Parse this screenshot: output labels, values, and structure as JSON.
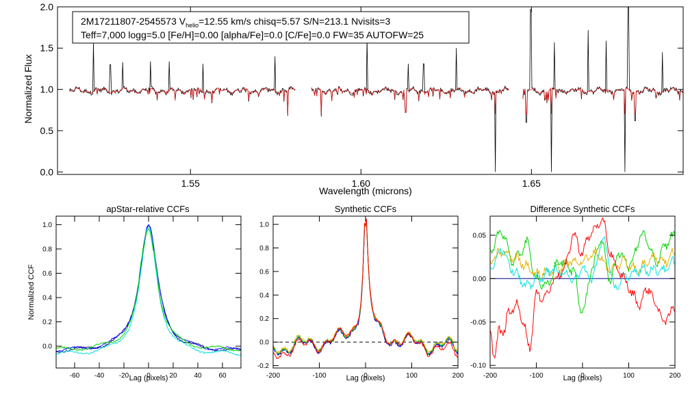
{
  "top_panel": {
    "info_line1": {
      "star": "2M17211807-2545573",
      "v_prefix": "V",
      "v_sub": "helio",
      "rest": "=12.55 km/s  chisq=5.57  S/N=213.1  Nvisits=3"
    },
    "info_line2": "Teff=7,000 logg=5.0 [Fe/H]=0.00 [alpha/Fe]=0.0 [C/Fe]=0.0 FW=35 AUTOFW=25"
  },
  "colors": {
    "observed": "#000000",
    "model": "#e01010",
    "navy": "#000080",
    "blue": "#1010ff",
    "green": "#00d000",
    "cyan": "#00e0e0",
    "orange": "#e0b000",
    "red": "#ff0000"
  },
  "chart_data": [
    {
      "type": "line",
      "title": "",
      "xlabel": "Wavelength (microns)",
      "ylabel": "Normalized Flux",
      "xlim": [
        1.511,
        1.6945
      ],
      "ylim": [
        -0.03,
        2.0
      ],
      "xticks": [
        1.55,
        1.6,
        1.65
      ],
      "xtick_labels": [
        "1.55",
        "1.60",
        "1.65"
      ],
      "yticks": [
        0.0,
        0.5,
        1.0,
        1.5,
        2.0
      ],
      "ytick_labels": [
        "0.0",
        "0.5",
        "1.0",
        "1.5",
        "2.0"
      ],
      "chips": [
        [
          1.5145,
          1.5809
        ],
        [
          1.5855,
          1.6434
        ],
        [
          1.6475,
          1.6955
        ]
      ],
      "emission_spikes": [
        [
          1.5215,
          1.58
        ],
        [
          1.5265,
          1.3
        ],
        [
          1.5301,
          1.33
        ],
        [
          1.5383,
          1.34
        ],
        [
          1.5438,
          1.34
        ],
        [
          1.5537,
          1.31
        ],
        [
          1.5748,
          1.4
        ],
        [
          1.6018,
          1.63
        ],
        [
          1.6138,
          1.31
        ],
        [
          1.6184,
          1.31
        ],
        [
          1.6279,
          1.5
        ],
        [
          1.6436,
          1.33
        ],
        [
          1.6498,
          1.97
        ],
        [
          1.6568,
          1.57
        ],
        [
          1.6667,
          1.72
        ],
        [
          1.6719,
          1.59
        ],
        [
          1.6784,
          2.0
        ],
        [
          1.6884,
          1.45
        ]
      ],
      "absorption_dips": [
        [
          1.5786,
          0.68
        ],
        [
          1.5883,
          0.67
        ],
        [
          1.6131,
          0.72
        ],
        [
          1.6394,
          0.0
        ],
        [
          1.6485,
          0.6
        ],
        [
          1.6559,
          0.0
        ],
        [
          1.6774,
          0.0
        ],
        [
          1.6804,
          0.62
        ]
      ],
      "series": [
        {
          "name": "observed spectrum",
          "color": "#000000"
        },
        {
          "name": "best-fit model",
          "color": "#e01010"
        }
      ]
    },
    {
      "type": "line",
      "title": "apStar-relative CCFs",
      "xlabel": "Lag (pixels)",
      "ylabel": "Normalized CCF",
      "xlim": [
        -75,
        75
      ],
      "ylim": [
        -0.18,
        1.07
      ],
      "xticks": [
        -60,
        -40,
        -20,
        0,
        20,
        40,
        60
      ],
      "xtick_labels": [
        "-60",
        "-40",
        "-20",
        "0",
        "20",
        "40",
        "60"
      ],
      "yticks": [
        0.0,
        0.2,
        0.4,
        0.6,
        0.8,
        1.0
      ],
      "ytick_labels": [
        "0.0",
        "0.2",
        "0.4",
        "0.6",
        "0.8",
        "1.0"
      ],
      "series": [
        {
          "name": "ccf-navy",
          "color": "#000080",
          "peak": 0.99,
          "width": 9,
          "base": -0.05
        },
        {
          "name": "ccf-blue",
          "color": "#1010ff",
          "peak": 0.99,
          "width": 9,
          "base": -0.045
        },
        {
          "name": "ccf-cyan",
          "color": "#00e0e0",
          "peak": 0.97,
          "width": 8.5,
          "base": -0.075
        },
        {
          "name": "ccf-green",
          "color": "#00d000",
          "peak": 0.96,
          "width": 8.5,
          "base": -0.04
        }
      ]
    },
    {
      "type": "line",
      "title": "Synthetic CCFs",
      "xlabel": "Lag (pixels)",
      "ylabel": "",
      "xlim": [
        -200,
        200
      ],
      "ylim": [
        -0.22,
        1.07
      ],
      "xticks": [
        -200,
        -100,
        0,
        100,
        200
      ],
      "xtick_labels": [
        "-200",
        "-100",
        "0",
        "100",
        "200"
      ],
      "yticks": [
        -0.2,
        0.0,
        0.2,
        0.4,
        0.6,
        0.8,
        1.0
      ],
      "ytick_labels": [
        "-0.2",
        "0.0",
        "0.2",
        "0.4",
        "0.6",
        "0.8",
        "1.0"
      ],
      "reference_line": 0.0,
      "series": [
        {
          "name": "syn-navy",
          "color": "#000080",
          "peak": 1.0
        },
        {
          "name": "syn-blue",
          "color": "#1010ff",
          "peak": 1.0
        },
        {
          "name": "syn-green",
          "color": "#00d000",
          "peak": 0.98
        },
        {
          "name": "syn-orange",
          "color": "#e0b000",
          "peak": 0.99
        },
        {
          "name": "syn-red",
          "color": "#ff0000",
          "peak": 0.99
        }
      ]
    },
    {
      "type": "line",
      "title": "Difference Synthetic CCFs",
      "xlabel": "Lag (pixels)",
      "ylabel": "",
      "xlim": [
        -200,
        200
      ],
      "ylim": [
        -0.103,
        0.072
      ],
      "xticks": [
        -200,
        -100,
        0,
        100,
        200
      ],
      "xtick_labels": [
        "-200",
        "-100",
        "0",
        "100",
        "200"
      ],
      "yticks": [
        -0.1,
        -0.05,
        0.0,
        0.05
      ],
      "ytick_labels": [
        "-0.10",
        "-0.05",
        "0.00",
        "0.05"
      ],
      "series": [
        {
          "name": "diff-navy",
          "color": "#000080",
          "flat": 0.0
        },
        {
          "name": "diff-green",
          "color": "#00d000",
          "anchors": [
            [
              -200,
              0.03
            ],
            [
              -175,
              0.055
            ],
            [
              -150,
              0.02
            ],
            [
              -120,
              0.04
            ],
            [
              -100,
              0.0
            ],
            [
              -80,
              -0.01
            ],
            [
              -50,
              0.02
            ],
            [
              -20,
              0.01
            ],
            [
              0,
              -0.04
            ],
            [
              20,
              0.01
            ],
            [
              40,
              0.045
            ],
            [
              60,
              0.0
            ],
            [
              80,
              0.03
            ],
            [
              100,
              0.015
            ],
            [
              130,
              0.05
            ],
            [
              160,
              0.02
            ],
            [
              180,
              0.04
            ],
            [
              200,
              0.05
            ]
          ]
        },
        {
          "name": "diff-orange",
          "color": "#e0b000",
          "anchors": [
            [
              -200,
              0.02
            ],
            [
              -175,
              0.03
            ],
            [
              -150,
              0.025
            ],
            [
              -120,
              0.015
            ],
            [
              -100,
              0.005
            ],
            [
              -60,
              0.01
            ],
            [
              -20,
              0.02
            ],
            [
              0,
              0.02
            ],
            [
              30,
              0.03
            ],
            [
              60,
              0.01
            ],
            [
              90,
              0.02
            ],
            [
              120,
              0.01
            ],
            [
              150,
              0.025
            ],
            [
              180,
              0.02
            ],
            [
              200,
              0.03
            ]
          ]
        },
        {
          "name": "diff-cyan",
          "color": "#00e0e0",
          "anchors": [
            [
              -200,
              0.01
            ],
            [
              -175,
              0.035
            ],
            [
              -150,
              0.01
            ],
            [
              -120,
              -0.01
            ],
            [
              -100,
              0.0
            ],
            [
              -60,
              0.01
            ],
            [
              -20,
              0.0
            ],
            [
              0,
              0.01
            ],
            [
              20,
              0.0
            ],
            [
              45,
              0.045
            ],
            [
              70,
              -0.01
            ],
            [
              90,
              0.0
            ],
            [
              120,
              0.01
            ],
            [
              150,
              0.01
            ],
            [
              180,
              0.01
            ],
            [
              200,
              0.02
            ]
          ]
        },
        {
          "name": "diff-red",
          "color": "#ff0000",
          "anchors": [
            [
              -200,
              -0.06
            ],
            [
              -190,
              -0.09
            ],
            [
              -180,
              -0.06
            ],
            [
              -170,
              -0.06
            ],
            [
              -160,
              -0.04
            ],
            [
              -145,
              -0.03
            ],
            [
              -130,
              -0.045
            ],
            [
              -115,
              -0.08
            ],
            [
              -100,
              -0.02
            ],
            [
              -80,
              -0.02
            ],
            [
              -60,
              0.0
            ],
            [
              -40,
              0.01
            ],
            [
              -20,
              0.05
            ],
            [
              0,
              0.03
            ],
            [
              15,
              0.05
            ],
            [
              30,
              0.06
            ],
            [
              45,
              0.065
            ],
            [
              60,
              0.03
            ],
            [
              75,
              0.01
            ],
            [
              90,
              0.0
            ],
            [
              110,
              -0.02
            ],
            [
              125,
              -0.03
            ],
            [
              140,
              -0.01
            ],
            [
              160,
              -0.03
            ],
            [
              175,
              -0.05
            ],
            [
              190,
              -0.04
            ],
            [
              200,
              -0.035
            ]
          ]
        }
      ]
    }
  ]
}
